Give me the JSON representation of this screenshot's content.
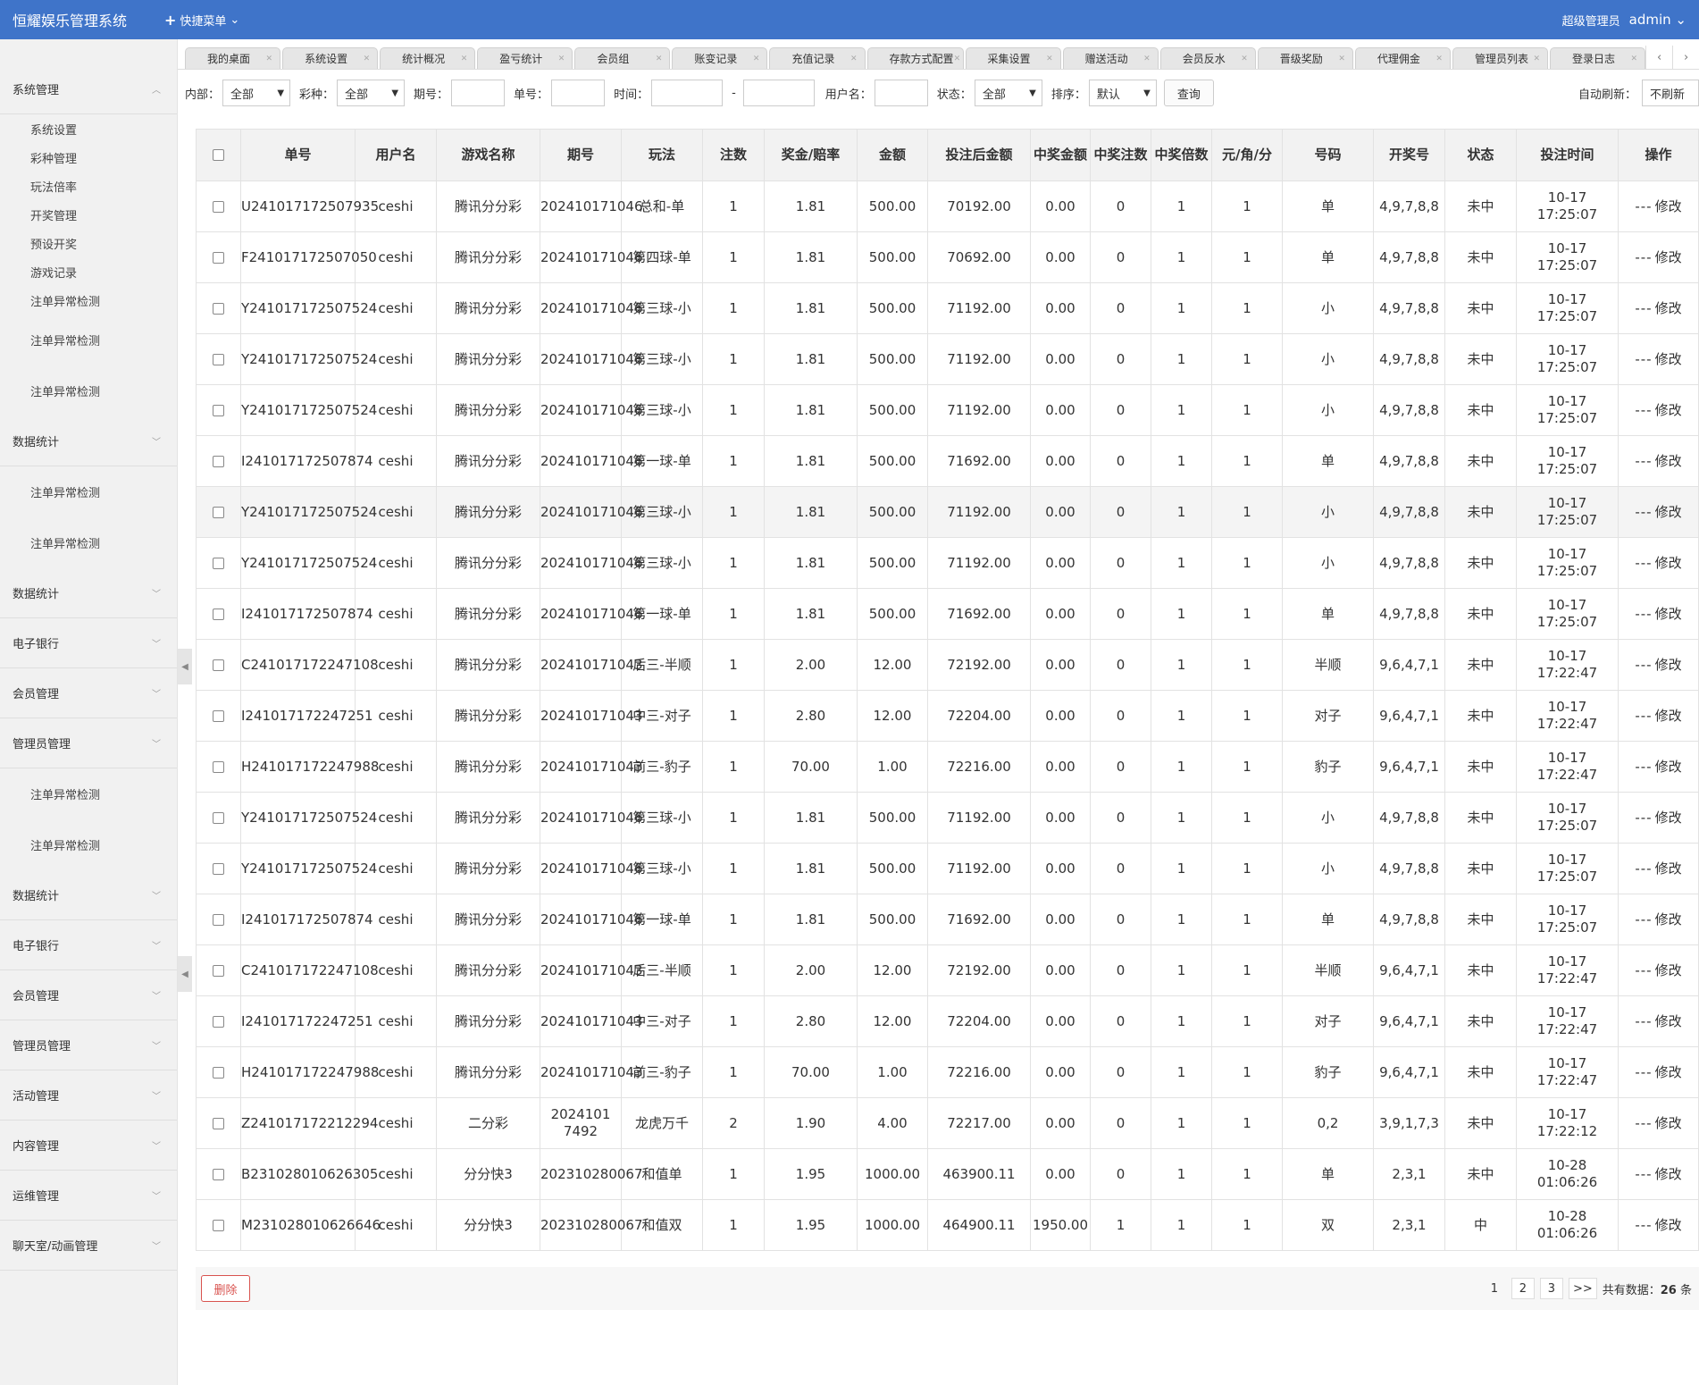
{
  "header": {
    "brand": "恒耀娱乐管理系统",
    "quick_menu": "快捷菜单",
    "role": "超级管理员",
    "user": "admin"
  },
  "sidebar": {
    "items": [
      {
        "type": "section",
        "label": "系统管理",
        "open": true
      },
      {
        "type": "sub",
        "label": "系统设置"
      },
      {
        "type": "sub",
        "label": "彩种管理"
      },
      {
        "type": "sub",
        "label": "玩法倍率"
      },
      {
        "type": "sub",
        "label": "开奖管理"
      },
      {
        "type": "sub",
        "label": "预设开奖"
      },
      {
        "type": "sub",
        "label": "游戏记录"
      },
      {
        "type": "sub",
        "label": "注单异常检测"
      },
      {
        "type": "subtall",
        "label": "注单异常检测"
      },
      {
        "type": "subtall",
        "label": "注单异常检测"
      },
      {
        "type": "section",
        "label": "数据统计"
      },
      {
        "type": "subtall",
        "label": "注单异常检测"
      },
      {
        "type": "subtall",
        "label": "注单异常检测"
      },
      {
        "type": "section",
        "label": "数据统计"
      },
      {
        "type": "section",
        "label": "电子银行"
      },
      {
        "type": "section",
        "label": "会员管理"
      },
      {
        "type": "section",
        "label": "管理员管理"
      },
      {
        "type": "subtall",
        "label": "注单异常检测"
      },
      {
        "type": "subtall",
        "label": "注单异常检测"
      },
      {
        "type": "section",
        "label": "数据统计"
      },
      {
        "type": "section",
        "label": "电子银行"
      },
      {
        "type": "section",
        "label": "会员管理"
      },
      {
        "type": "section",
        "label": "管理员管理"
      },
      {
        "type": "section",
        "label": "活动管理"
      },
      {
        "type": "section",
        "label": "内容管理"
      },
      {
        "type": "section",
        "label": "运维管理"
      },
      {
        "type": "section",
        "label": "聊天室/动画管理"
      }
    ]
  },
  "tabs": [
    "我的桌面",
    "系统设置",
    "统计概况",
    "盈亏统计",
    "会员组",
    "账变记录",
    "充值记录",
    "存款方式配置",
    "采集设置",
    "赠送活动",
    "会员反水",
    "晋级奖励",
    "代理佣金",
    "管理员列表",
    "登录日志"
  ],
  "filters": {
    "internal_label": "内部：",
    "internal_value": "全部",
    "lottery_label": "彩种：",
    "lottery_value": "全部",
    "period_label": "期号：",
    "order_label": "单号：",
    "time_label": "时间：",
    "time_sep": "-",
    "username_label": "用户名：",
    "status_label": "状态：",
    "status_value": "全部",
    "sort_label": "排序：",
    "sort_value": "默认",
    "query_button": "查询",
    "auto_refresh_label": "自动刷新：",
    "auto_refresh_value": "不刷新"
  },
  "table": {
    "headers": [
      "单号",
      "用户名",
      "游戏名称",
      "期号",
      "玩法",
      "注数",
      "奖金/赔率",
      "金额",
      "投注后金额",
      "中奖金额",
      "中奖注数",
      "中奖倍数",
      "元/角/分",
      "号码",
      "开奖号",
      "状态",
      "投注时间",
      "操作"
    ],
    "edit_label": "修改",
    "dash": "---",
    "rows": [
      [
        "U241017172507935",
        "ceshi",
        "腾讯分分彩",
        "202410171046",
        "总和-单",
        "1",
        "1.81",
        "500.00",
        "70192.00",
        "0.00",
        "0",
        "1",
        "1",
        "单",
        "4,9,7,8,8",
        "未中",
        "10-17 17:25:07"
      ],
      [
        "F241017172507050",
        "ceshi",
        "腾讯分分彩",
        "202410171046",
        "第四球-单",
        "1",
        "1.81",
        "500.00",
        "70692.00",
        "0.00",
        "0",
        "1",
        "1",
        "单",
        "4,9,7,8,8",
        "未中",
        "10-17 17:25:07"
      ],
      [
        "Y241017172507524",
        "ceshi",
        "腾讯分分彩",
        "202410171046",
        "第三球-小",
        "1",
        "1.81",
        "500.00",
        "71192.00",
        "0.00",
        "0",
        "1",
        "1",
        "小",
        "4,9,7,8,8",
        "未中",
        "10-17 17:25:07"
      ],
      [
        "Y241017172507524",
        "ceshi",
        "腾讯分分彩",
        "202410171046",
        "第三球-小",
        "1",
        "1.81",
        "500.00",
        "71192.00",
        "0.00",
        "0",
        "1",
        "1",
        "小",
        "4,9,7,8,8",
        "未中",
        "10-17 17:25:07"
      ],
      [
        "Y241017172507524",
        "ceshi",
        "腾讯分分彩",
        "202410171046",
        "第三球-小",
        "1",
        "1.81",
        "500.00",
        "71192.00",
        "0.00",
        "0",
        "1",
        "1",
        "小",
        "4,9,7,8,8",
        "未中",
        "10-17 17:25:07"
      ],
      [
        "I241017172507874",
        "ceshi",
        "腾讯分分彩",
        "202410171046",
        "第一球-单",
        "1",
        "1.81",
        "500.00",
        "71692.00",
        "0.00",
        "0",
        "1",
        "1",
        "单",
        "4,9,7,8,8",
        "未中",
        "10-17 17:25:07"
      ],
      [
        "Y241017172507524",
        "ceshi",
        "腾讯分分彩",
        "202410171046",
        "第三球-小",
        "1",
        "1.81",
        "500.00",
        "71192.00",
        "0.00",
        "0",
        "1",
        "1",
        "小",
        "4,9,7,8,8",
        "未中",
        "10-17 17:25:07"
      ],
      [
        "Y241017172507524",
        "ceshi",
        "腾讯分分彩",
        "202410171046",
        "第三球-小",
        "1",
        "1.81",
        "500.00",
        "71192.00",
        "0.00",
        "0",
        "1",
        "1",
        "小",
        "4,9,7,8,8",
        "未中",
        "10-17 17:25:07"
      ],
      [
        "I241017172507874",
        "ceshi",
        "腾讯分分彩",
        "202410171046",
        "第一球-单",
        "1",
        "1.81",
        "500.00",
        "71692.00",
        "0.00",
        "0",
        "1",
        "1",
        "单",
        "4,9,7,8,8",
        "未中",
        "10-17 17:25:07"
      ],
      [
        "C241017172247108",
        "ceshi",
        "腾讯分分彩",
        "202410171043",
        "后三-半顺",
        "1",
        "2.00",
        "12.00",
        "72192.00",
        "0.00",
        "0",
        "1",
        "1",
        "半顺",
        "9,6,4,7,1",
        "未中",
        "10-17 17:22:47"
      ],
      [
        "I241017172247251",
        "ceshi",
        "腾讯分分彩",
        "202410171043",
        "中三-对子",
        "1",
        "2.80",
        "12.00",
        "72204.00",
        "0.00",
        "0",
        "1",
        "1",
        "对子",
        "9,6,4,7,1",
        "未中",
        "10-17 17:22:47"
      ],
      [
        "H241017172247988",
        "ceshi",
        "腾讯分分彩",
        "202410171043",
        "前三-豹子",
        "1",
        "70.00",
        "1.00",
        "72216.00",
        "0.00",
        "0",
        "1",
        "1",
        "豹子",
        "9,6,4,7,1",
        "未中",
        "10-17 17:22:47"
      ],
      [
        "Y241017172507524",
        "ceshi",
        "腾讯分分彩",
        "202410171046",
        "第三球-小",
        "1",
        "1.81",
        "500.00",
        "71192.00",
        "0.00",
        "0",
        "1",
        "1",
        "小",
        "4,9,7,8,8",
        "未中",
        "10-17 17:25:07"
      ],
      [
        "Y241017172507524",
        "ceshi",
        "腾讯分分彩",
        "202410171046",
        "第三球-小",
        "1",
        "1.81",
        "500.00",
        "71192.00",
        "0.00",
        "0",
        "1",
        "1",
        "小",
        "4,9,7,8,8",
        "未中",
        "10-17 17:25:07"
      ],
      [
        "I241017172507874",
        "ceshi",
        "腾讯分分彩",
        "202410171046",
        "第一球-单",
        "1",
        "1.81",
        "500.00",
        "71692.00",
        "0.00",
        "0",
        "1",
        "1",
        "单",
        "4,9,7,8,8",
        "未中",
        "10-17 17:25:07"
      ],
      [
        "C241017172247108",
        "ceshi",
        "腾讯分分彩",
        "202410171043",
        "后三-半顺",
        "1",
        "2.00",
        "12.00",
        "72192.00",
        "0.00",
        "0",
        "1",
        "1",
        "半顺",
        "9,6,4,7,1",
        "未中",
        "10-17 17:22:47"
      ],
      [
        "I241017172247251",
        "ceshi",
        "腾讯分分彩",
        "202410171043",
        "中三-对子",
        "1",
        "2.80",
        "12.00",
        "72204.00",
        "0.00",
        "0",
        "1",
        "1",
        "对子",
        "9,6,4,7,1",
        "未中",
        "10-17 17:22:47"
      ],
      [
        "H241017172247988",
        "ceshi",
        "腾讯分分彩",
        "202410171043",
        "前三-豹子",
        "1",
        "70.00",
        "1.00",
        "72216.00",
        "0.00",
        "0",
        "1",
        "1",
        "豹子",
        "9,6,4,7,1",
        "未中",
        "10-17 17:22:47"
      ],
      [
        "Z241017172212294",
        "ceshi",
        "二分彩",
        "2024101 7492",
        "龙虎万千",
        "2",
        "1.90",
        "4.00",
        "72217.00",
        "0.00",
        "0",
        "1",
        "1",
        "0,2",
        "3,9,1,7,3",
        "未中",
        "10-17 17:22:12"
      ],
      [
        "B231028010626305",
        "ceshi",
        "分分快3",
        "202310280067",
        "和值单",
        "1",
        "1.95",
        "1000.00",
        "463900.11",
        "0.00",
        "0",
        "1",
        "1",
        "单",
        "2,3,1",
        "未中",
        "10-28 01:06:26"
      ],
      [
        "M231028010626646",
        "ceshi",
        "分分快3",
        "202310280067",
        "和值双",
        "1",
        "1.95",
        "1000.00",
        "464900.11",
        "1950.00",
        "1",
        "1",
        "1",
        "双",
        "2,3,1",
        "中",
        "10-28 01:06:26"
      ]
    ]
  },
  "footer": {
    "delete_button": "删除",
    "pages": [
      "1",
      "2",
      "3",
      ">>"
    ],
    "total_label": "共有数据：",
    "total_count": "26",
    "total_unit": "条"
  },
  "colors": {
    "topbar": "#3f74c9",
    "status_lose": "#e02020",
    "status_win": "#1a8a1a"
  }
}
